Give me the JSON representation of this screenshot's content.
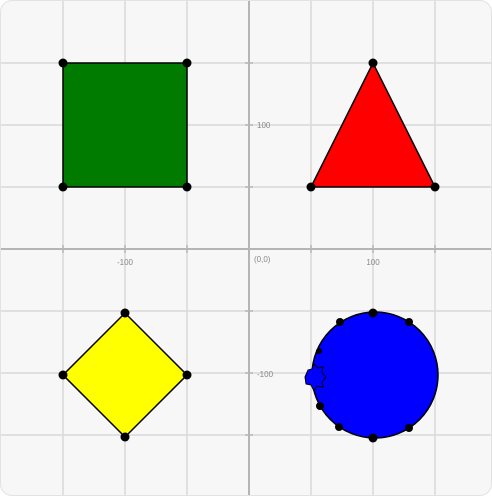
{
  "axes": {
    "origin_label": "(0,0)",
    "x_labels": [
      "-100",
      "100"
    ],
    "y_labels": [
      "100",
      "-100"
    ]
  }
}
